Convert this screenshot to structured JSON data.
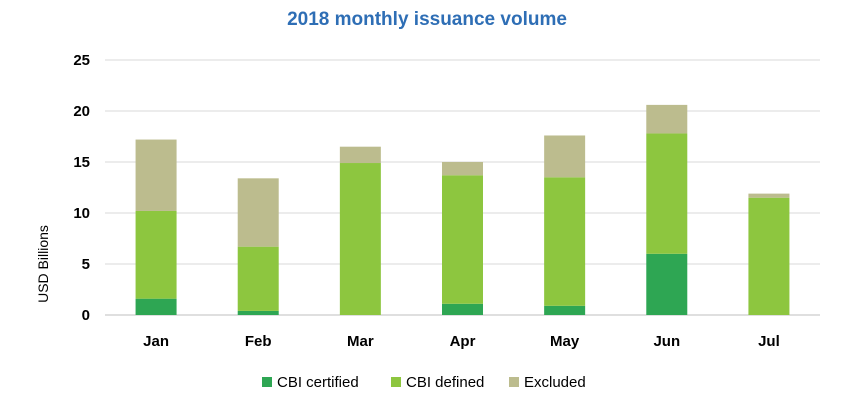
{
  "chart_data": {
    "type": "bar",
    "stacked": true,
    "title": "2018 monthly issuance volume",
    "xlabel": "",
    "ylabel": "USD Billions",
    "ylim": [
      0,
      25
    ],
    "yticks": [
      0,
      5,
      10,
      15,
      20,
      25
    ],
    "grid": true,
    "legend_position": "bottom",
    "categories": [
      "Jan",
      "Feb",
      "Mar",
      "Apr",
      "May",
      "Jun",
      "Jul"
    ],
    "series": [
      {
        "name": "CBI certified",
        "color": "#2ea653",
        "values": [
          1.6,
          0.4,
          0.0,
          1.1,
          0.9,
          6.0,
          0.0
        ]
      },
      {
        "name": "CBI defined",
        "color": "#8dc63f",
        "values": [
          8.6,
          6.3,
          14.9,
          12.6,
          12.6,
          11.8,
          11.5
        ]
      },
      {
        "name": "Excluded",
        "color": "#bcbc8e",
        "values": [
          7.0,
          6.7,
          1.6,
          1.3,
          4.1,
          2.8,
          0.4
        ]
      }
    ],
    "title_color": "#2e6eb5"
  }
}
